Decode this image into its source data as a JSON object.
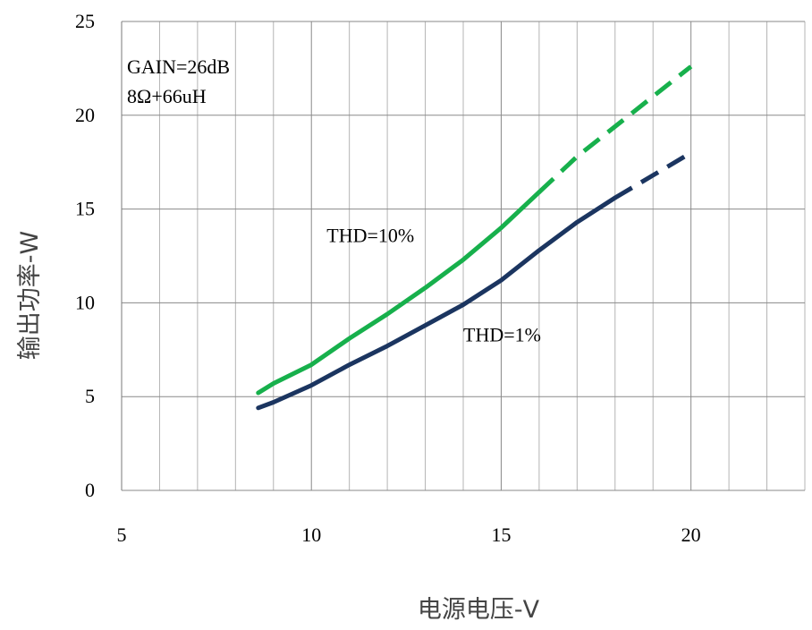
{
  "chart_data": {
    "type": "line",
    "title": "",
    "xlabel": "电源电压-V",
    "ylabel": "输出功率-W",
    "xlim": [
      5,
      23
    ],
    "ylim": [
      0,
      25
    ],
    "x_ticks": [
      "5",
      "10",
      "15",
      "20"
    ],
    "y_ticks": [
      "0",
      "5",
      "10",
      "15",
      "20",
      "25"
    ],
    "grid": true,
    "annotations": [
      "GAIN=26dB",
      "8Ω+66uH"
    ],
    "series": [
      {
        "name": "THD=10%",
        "color": "#17b04c",
        "solid": [
          [
            8.6,
            5.2
          ],
          [
            9,
            5.7
          ],
          [
            10,
            6.7
          ],
          [
            11,
            8.1
          ],
          [
            12,
            9.4
          ],
          [
            13,
            10.8
          ],
          [
            14,
            12.3
          ],
          [
            15,
            14.0
          ],
          [
            16,
            15.9
          ]
        ],
        "dashed": [
          [
            16,
            15.9
          ],
          [
            17,
            17.8
          ],
          [
            18,
            19.4
          ],
          [
            19,
            21.0
          ],
          [
            20,
            22.6
          ]
        ]
      },
      {
        "name": "THD=1%",
        "color": "#1b3560",
        "solid": [
          [
            8.6,
            4.4
          ],
          [
            9,
            4.7
          ],
          [
            10,
            5.6
          ],
          [
            11,
            6.7
          ],
          [
            12,
            7.7
          ],
          [
            13,
            8.8
          ],
          [
            14,
            9.9
          ],
          [
            15,
            11.2
          ],
          [
            16,
            12.8
          ],
          [
            17,
            14.3
          ],
          [
            18,
            15.6
          ]
        ],
        "dashed": [
          [
            18,
            15.6
          ],
          [
            19,
            16.8
          ],
          [
            20,
            18.0
          ]
        ]
      }
    ],
    "series_label_anchors": [
      [
        13.7,
        14.2
      ],
      [
        14,
        8.9
      ]
    ]
  }
}
